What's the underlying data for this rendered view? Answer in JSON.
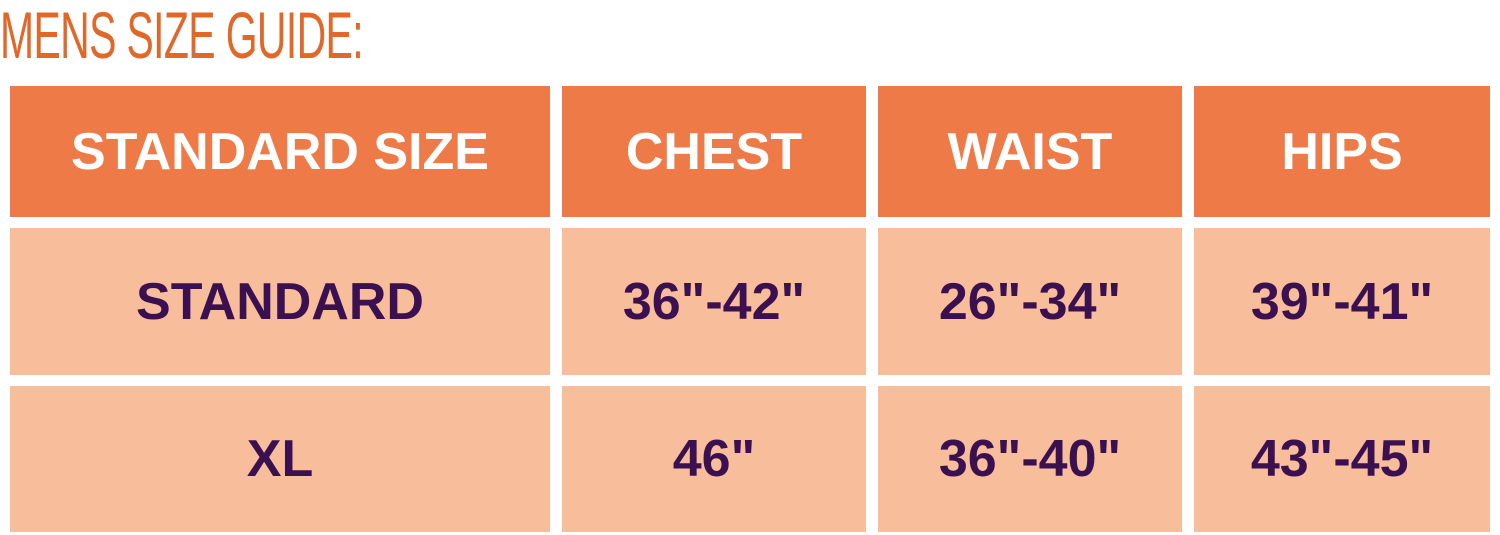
{
  "title": "MENS SIZE GUIDE:",
  "colors": {
    "title": "#e0692a",
    "header_bg": "#ee7b47",
    "row_bg": "#f8bd9a",
    "row_text": "#3a1050",
    "header_text": "#ffffff"
  },
  "table": {
    "headers": [
      "STANDARD SIZE",
      "CHEST",
      "WAIST",
      "HIPS"
    ],
    "rows": [
      [
        "STANDARD",
        "36\"-42\"",
        "26\"-34\"",
        "39\"-41\""
      ],
      [
        "XL",
        "46\"",
        "36\"-40\"",
        "43\"-45\""
      ]
    ]
  }
}
